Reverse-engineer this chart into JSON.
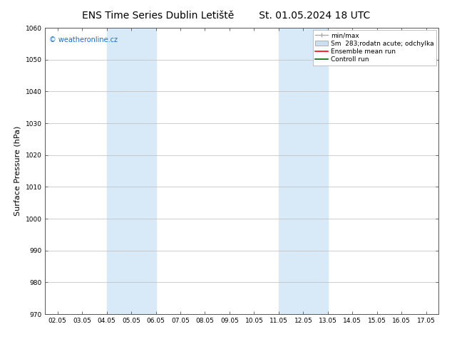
{
  "title": "ENS Time Series Dublin Letiště",
  "title_date": "St. 01.05.2024 18 UTC",
  "ylabel": "Surface Pressure (hPa)",
  "xlim": [
    0.5,
    16.5
  ],
  "ylim": [
    970,
    1060
  ],
  "yticks": [
    970,
    980,
    990,
    1000,
    1010,
    1020,
    1030,
    1040,
    1050,
    1060
  ],
  "xtick_labels": [
    "02.05",
    "03.05",
    "04.05",
    "05.05",
    "06.05",
    "07.05",
    "08.05",
    "09.05",
    "10.05",
    "11.05",
    "12.05",
    "13.05",
    "14.05",
    "15.05",
    "16.05",
    "17.05"
  ],
  "xtick_positions": [
    1,
    2,
    3,
    4,
    5,
    6,
    7,
    8,
    9,
    10,
    11,
    12,
    13,
    14,
    15,
    16
  ],
  "shaded_regions": [
    {
      "xmin": 3.0,
      "xmax": 5.0,
      "color": "#d8eaf8"
    },
    {
      "xmin": 10.0,
      "xmax": 12.0,
      "color": "#d8eaf8"
    }
  ],
  "watermark": "© weatheronline.cz",
  "watermark_color": "#1a6ecc",
  "legend_label1": "min/max",
  "legend_label2": "Sm  283;rodatn acute; odchylka",
  "legend_label3": "Ensemble mean run",
  "legend_label4": "Controll run",
  "legend_color1": "#aaaaaa",
  "legend_color2": "#c8dff0",
  "legend_color3": "#ff0000",
  "legend_color4": "#006600",
  "bg_color": "#ffffff",
  "plot_bg_color": "#ffffff",
  "grid_color": "#bbbbbb",
  "title_fontsize": 10,
  "tick_fontsize": 6.5,
  "ylabel_fontsize": 8,
  "legend_fontsize": 6.5
}
